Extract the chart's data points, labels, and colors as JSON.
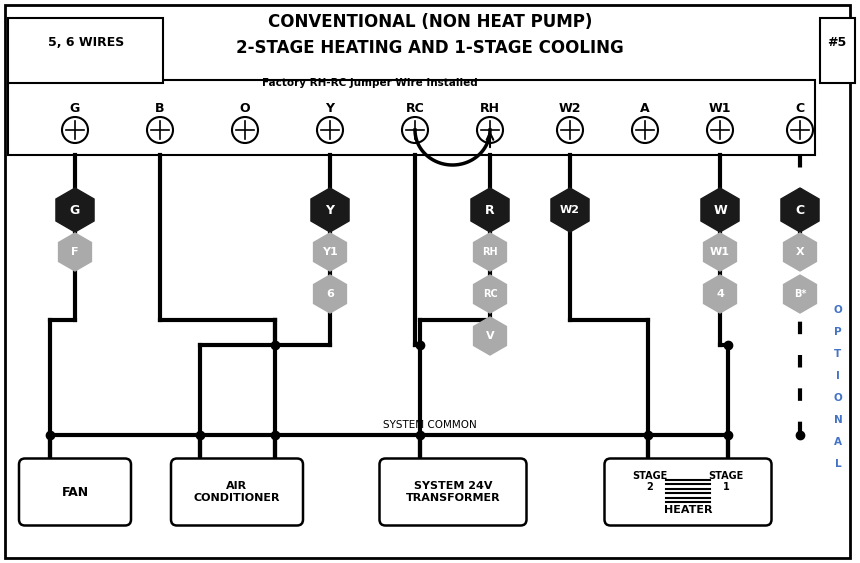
{
  "title_line1": "CONVENTIONAL (NON HEAT PUMP)",
  "title_line2": "2-STAGE HEATING AND 1-STAGE COOLING",
  "wires_label": "5, 6 WIRES",
  "number_label": "#5",
  "jumper_label": "Factory RH-RC Jumper Wire Installed",
  "system_common_label": "SYSTEM COMMON",
  "optional_label": "OPTIONAL",
  "terminal_labels": [
    "G",
    "B",
    "O",
    "Y",
    "RC",
    "RH",
    "W2",
    "A",
    "W1",
    "C"
  ],
  "bg_color": "#ffffff",
  "optional_color": "#4472c4",
  "hex_black": "#1a1a1a",
  "hex_gray": "#aaaaaa",
  "line_width": 3.0
}
